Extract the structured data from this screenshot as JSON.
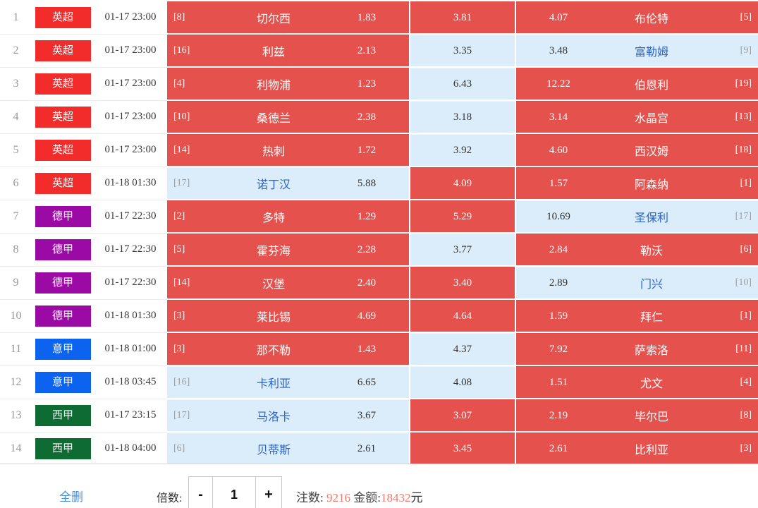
{
  "table": {
    "league_colors": {
      "英超": "#f22b2b",
      "德甲": "#9b0aa5",
      "意甲": "#0b63f0",
      "西甲": "#0e6b31"
    },
    "selected_color": "#e5514d",
    "unselected_color": "#dbedfa",
    "rows": [
      {
        "num": "1",
        "league": "英超",
        "time": "01-17 23:00",
        "home": {
          "rank": "[8]",
          "team": "切尔西",
          "odds": "1.83",
          "selected": true
        },
        "draw": {
          "odds": "3.81",
          "selected": true
        },
        "away": {
          "odds": "4.07",
          "team": "布伦特",
          "rank": "[5]",
          "selected": true
        }
      },
      {
        "num": "2",
        "league": "英超",
        "time": "01-17 23:00",
        "home": {
          "rank": "[16]",
          "team": "利兹",
          "odds": "2.13",
          "selected": true
        },
        "draw": {
          "odds": "3.35",
          "selected": false
        },
        "away": {
          "odds": "3.48",
          "team": "富勒姆",
          "rank": "[9]",
          "selected": false
        }
      },
      {
        "num": "3",
        "league": "英超",
        "time": "01-17 23:00",
        "home": {
          "rank": "[4]",
          "team": "利物浦",
          "odds": "1.23",
          "selected": true
        },
        "draw": {
          "odds": "6.43",
          "selected": false
        },
        "away": {
          "odds": "12.22",
          "team": "伯恩利",
          "rank": "[19]",
          "selected": true
        }
      },
      {
        "num": "4",
        "league": "英超",
        "time": "01-17 23:00",
        "home": {
          "rank": "[10]",
          "team": "桑德兰",
          "odds": "2.38",
          "selected": true
        },
        "draw": {
          "odds": "3.18",
          "selected": false
        },
        "away": {
          "odds": "3.14",
          "team": "水晶宫",
          "rank": "[13]",
          "selected": true
        }
      },
      {
        "num": "5",
        "league": "英超",
        "time": "01-17 23:00",
        "home": {
          "rank": "[14]",
          "team": "热刺",
          "odds": "1.72",
          "selected": true
        },
        "draw": {
          "odds": "3.92",
          "selected": false
        },
        "away": {
          "odds": "4.60",
          "team": "西汉姆",
          "rank": "[18]",
          "selected": true
        }
      },
      {
        "num": "6",
        "league": "英超",
        "time": "01-18 01:30",
        "home": {
          "rank": "[17]",
          "team": "诺丁汉",
          "odds": "5.88",
          "selected": false
        },
        "draw": {
          "odds": "4.09",
          "selected": true
        },
        "away": {
          "odds": "1.57",
          "team": "阿森纳",
          "rank": "[1]",
          "selected": true
        }
      },
      {
        "num": "7",
        "league": "德甲",
        "time": "01-17 22:30",
        "home": {
          "rank": "[2]",
          "team": "多特",
          "odds": "1.29",
          "selected": true
        },
        "draw": {
          "odds": "5.29",
          "selected": true
        },
        "away": {
          "odds": "10.69",
          "team": "圣保利",
          "rank": "[17]",
          "selected": false
        }
      },
      {
        "num": "8",
        "league": "德甲",
        "time": "01-17 22:30",
        "home": {
          "rank": "[5]",
          "team": "霍芬海",
          "odds": "2.28",
          "selected": true
        },
        "draw": {
          "odds": "3.77",
          "selected": false
        },
        "away": {
          "odds": "2.84",
          "team": "勒沃",
          "rank": "[6]",
          "selected": true
        }
      },
      {
        "num": "9",
        "league": "德甲",
        "time": "01-17 22:30",
        "home": {
          "rank": "[14]",
          "team": "汉堡",
          "odds": "2.40",
          "selected": true
        },
        "draw": {
          "odds": "3.40",
          "selected": true
        },
        "away": {
          "odds": "2.89",
          "team": "门兴",
          "rank": "[10]",
          "selected": false
        }
      },
      {
        "num": "10",
        "league": "德甲",
        "time": "01-18 01:30",
        "home": {
          "rank": "[3]",
          "team": "莱比锡",
          "odds": "4.69",
          "selected": true
        },
        "draw": {
          "odds": "4.64",
          "selected": true
        },
        "away": {
          "odds": "1.59",
          "team": "拜仁",
          "rank": "[1]",
          "selected": true
        }
      },
      {
        "num": "11",
        "league": "意甲",
        "time": "01-18 01:00",
        "home": {
          "rank": "[3]",
          "team": "那不勒",
          "odds": "1.43",
          "selected": true
        },
        "draw": {
          "odds": "4.37",
          "selected": false
        },
        "away": {
          "odds": "7.92",
          "team": "萨索洛",
          "rank": "[11]",
          "selected": true
        }
      },
      {
        "num": "12",
        "league": "意甲",
        "time": "01-18 03:45",
        "home": {
          "rank": "[16]",
          "team": "卡利亚",
          "odds": "6.65",
          "selected": false
        },
        "draw": {
          "odds": "4.08",
          "selected": false
        },
        "away": {
          "odds": "1.51",
          "team": "尤文",
          "rank": "[4]",
          "selected": true
        }
      },
      {
        "num": "13",
        "league": "西甲",
        "time": "01-17 23:15",
        "home": {
          "rank": "[17]",
          "team": "马洛卡",
          "odds": "3.67",
          "selected": false
        },
        "draw": {
          "odds": "3.07",
          "selected": true
        },
        "away": {
          "odds": "2.19",
          "team": "毕尔巴",
          "rank": "[8]",
          "selected": true
        }
      },
      {
        "num": "14",
        "league": "西甲",
        "time": "01-18 04:00",
        "home": {
          "rank": "[6]",
          "team": "贝蒂斯",
          "odds": "2.61",
          "selected": false
        },
        "draw": {
          "odds": "3.45",
          "selected": true
        },
        "away": {
          "odds": "2.61",
          "team": "比利亚",
          "rank": "[3]",
          "selected": true
        }
      }
    ]
  },
  "footer": {
    "delete_all_label": "全删",
    "multiplier_label": "倍数:",
    "minus_label": "-",
    "multiplier_value": "1",
    "plus_label": "+",
    "bets_label": "注数:",
    "bets_value": "9216",
    "amount_label": "金额:",
    "amount_value": "18432",
    "amount_unit": "元",
    "accent_red": "#ef7b71",
    "link_blue": "#4a8fd4"
  }
}
